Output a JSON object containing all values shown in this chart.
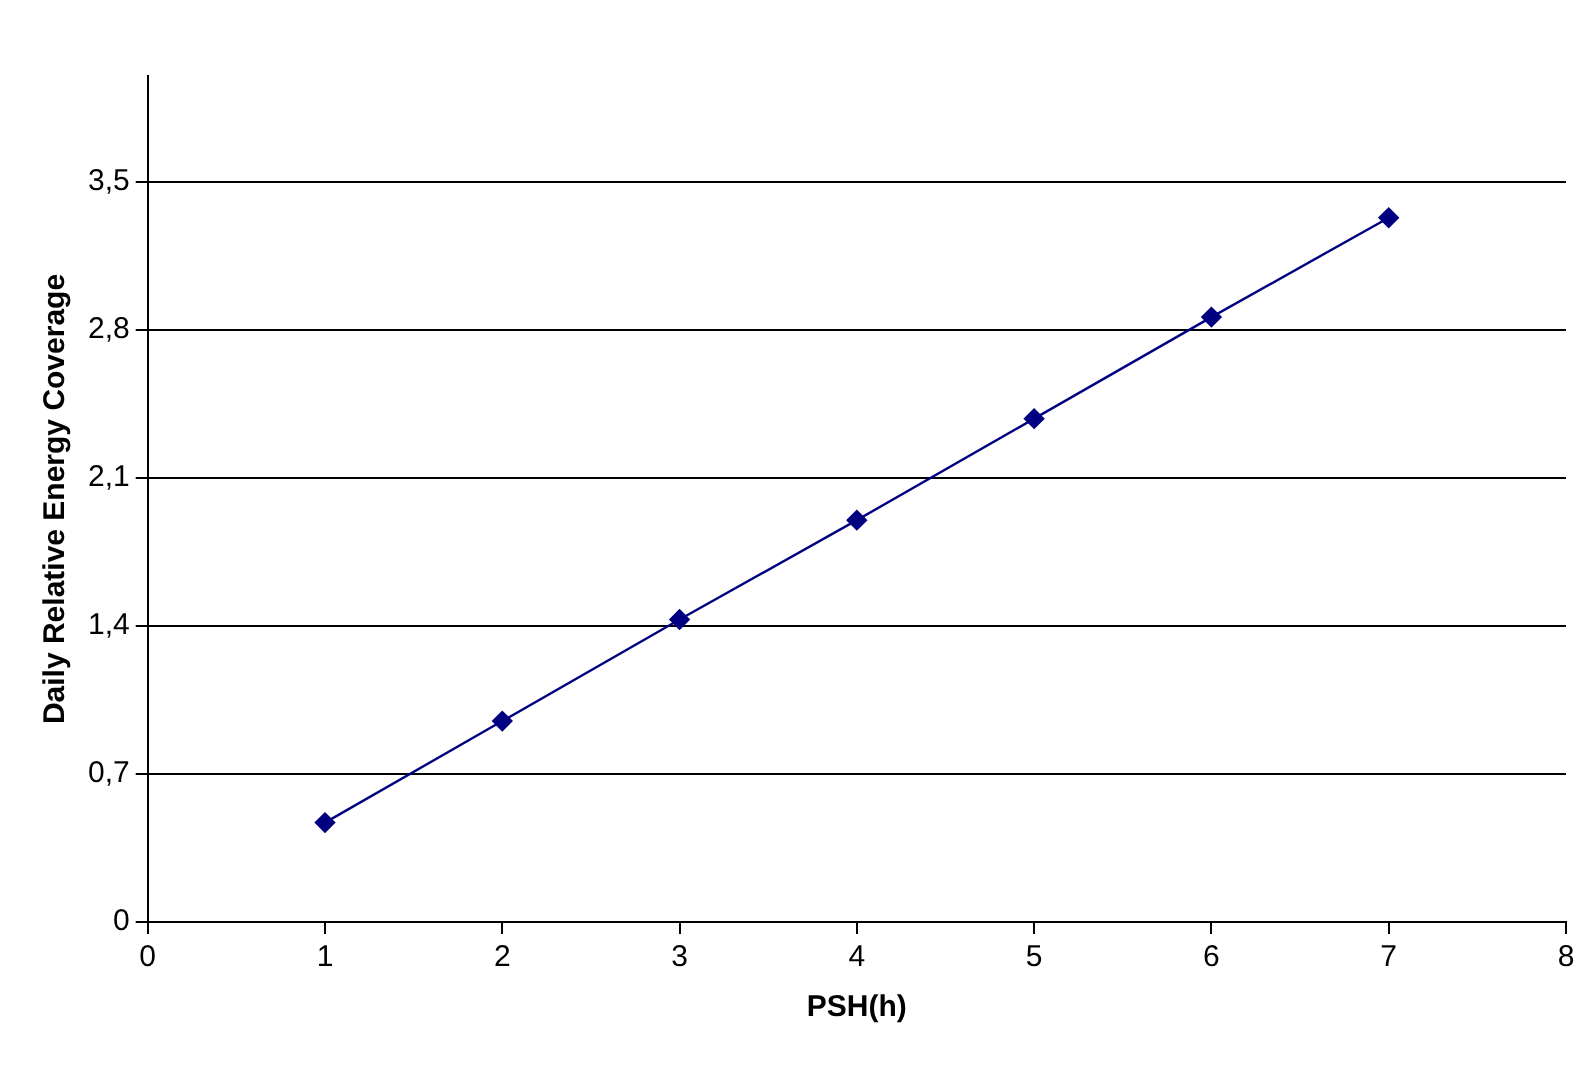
{
  "chart_data": {
    "type": "line",
    "xlabel": "PSH(h)",
    "ylabel": "Daily Relative Energy Coverage",
    "x": [
      1,
      2,
      3,
      4,
      5,
      6,
      7
    ],
    "series": [
      {
        "color": "#000080",
        "values": [
          0.47,
          0.95,
          1.43,
          1.9,
          2.38,
          2.86,
          3.33
        ]
      }
    ],
    "xlim": [
      0,
      8
    ],
    "xticks": [
      0,
      1,
      2,
      3,
      4,
      5,
      6,
      7,
      8
    ],
    "ylim": [
      0,
      4
    ],
    "yticks": [
      0,
      {
        "value": 0.7,
        "label": "0,7"
      },
      {
        "value": 1.4,
        "label": "1,4"
      },
      {
        "value": 2.1,
        "label": "2,1"
      },
      {
        "value": 2.8,
        "label": "2,8"
      },
      {
        "value": 3.5,
        "label": "3,5"
      }
    ],
    "grid": "y",
    "marker": "diamond",
    "line_style": "solid",
    "legend": false
  }
}
